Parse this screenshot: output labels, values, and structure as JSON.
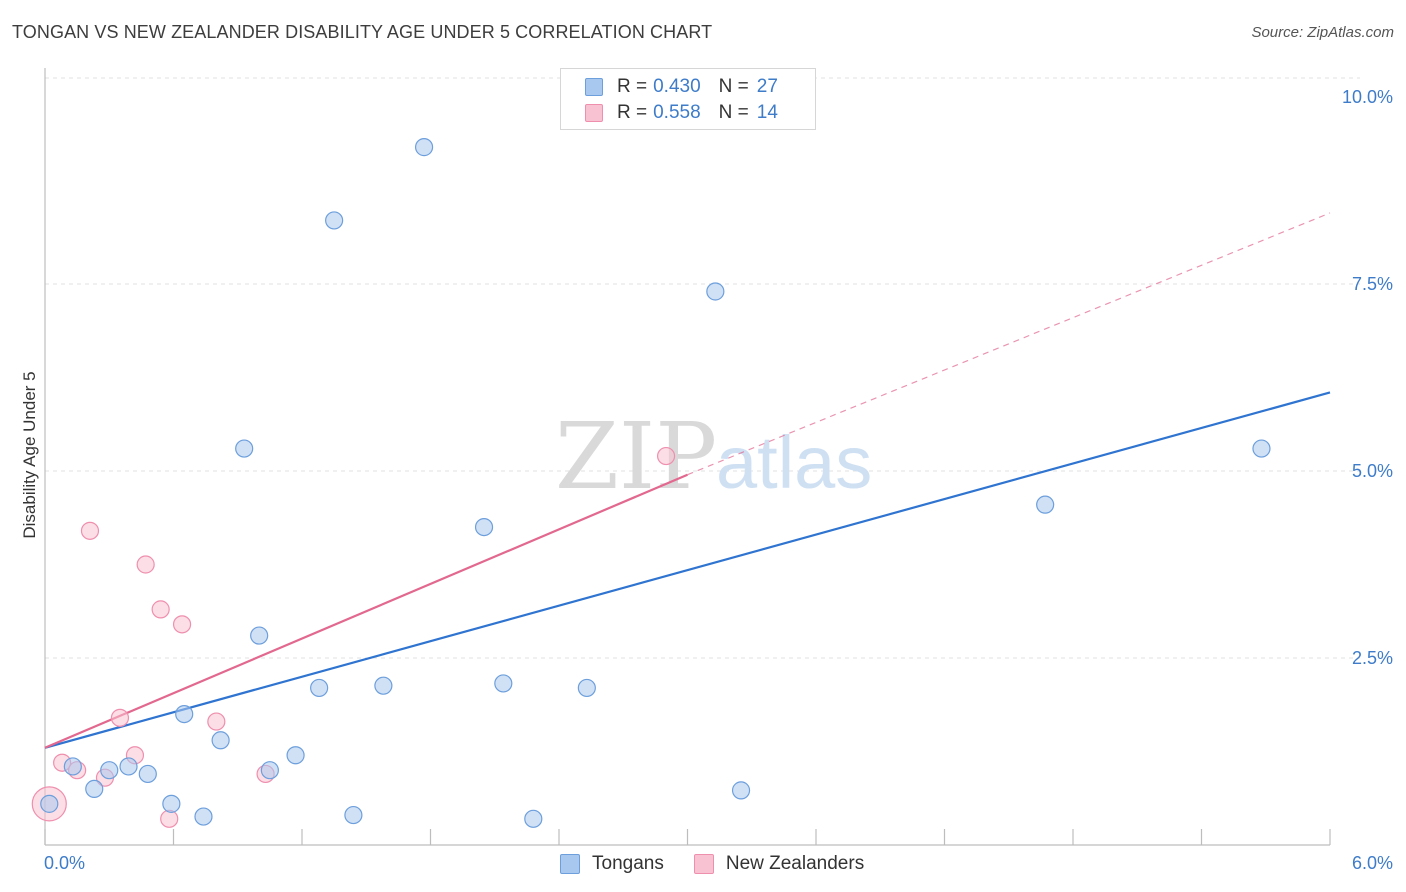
{
  "title": "TONGAN VS NEW ZEALANDER DISABILITY AGE UNDER 5 CORRELATION CHART",
  "source": "Source: ZipAtlas.com",
  "watermark": {
    "zip": "ZIP",
    "atlas": "atlas"
  },
  "legend": {
    "items": [
      {
        "r_label": "R =",
        "r_value": "0.430",
        "n_label": "N =",
        "n_value": "27",
        "color": "#a9c8ef",
        "border": "#6d9fdc"
      },
      {
        "r_label": "R =",
        "r_value": "0.558",
        "n_label": "N =",
        "n_value": "14",
        "color": "#f9c2d2",
        "border": "#ef8fae"
      }
    ]
  },
  "bottom_legend": [
    {
      "label": "Tongans",
      "color": "#a9c8ef",
      "border": "#6d9fdc"
    },
    {
      "label": "New Zealanders",
      "color": "#f9c2d2",
      "border": "#ef8fae"
    }
  ],
  "chart_data": {
    "type": "scatter",
    "title": "TONGAN VS NEW ZEALANDER DISABILITY AGE UNDER 5 CORRELATION CHART",
    "xlabel": "",
    "ylabel": "Disability Age Under 5",
    "xlim": [
      0,
      6.0
    ],
    "ylim": [
      0,
      10.0
    ],
    "x_tick_labels": [
      "0.0%",
      "6.0%"
    ],
    "y_ticks": [
      2.5,
      5.0,
      7.5,
      10.0
    ],
    "y_tick_labels": [
      "2.5%",
      "5.0%",
      "7.5%",
      "10.0%"
    ],
    "grid": true,
    "series": [
      {
        "name": "Tongans",
        "color": "#a9c8ef",
        "stroke": "#6d9fdc",
        "line_color": "#2f74d0",
        "trend": {
          "x": [
            0.0,
            6.0
          ],
          "y": [
            1.3,
            6.05
          ]
        },
        "points": [
          {
            "x": 0.02,
            "y": 0.55
          },
          {
            "x": 0.13,
            "y": 1.05
          },
          {
            "x": 0.23,
            "y": 0.75
          },
          {
            "x": 0.3,
            "y": 1.0
          },
          {
            "x": 0.39,
            "y": 1.05
          },
          {
            "x": 0.48,
            "y": 0.95
          },
          {
            "x": 0.59,
            "y": 0.55
          },
          {
            "x": 0.65,
            "y": 1.75
          },
          {
            "x": 0.74,
            "y": 0.38
          },
          {
            "x": 0.82,
            "y": 1.4
          },
          {
            "x": 0.93,
            "y": 5.3
          },
          {
            "x": 1.0,
            "y": 2.8
          },
          {
            "x": 1.05,
            "y": 1.0
          },
          {
            "x": 1.17,
            "y": 1.2
          },
          {
            "x": 1.28,
            "y": 2.1
          },
          {
            "x": 1.35,
            "y": 8.35
          },
          {
            "x": 1.44,
            "y": 0.4
          },
          {
            "x": 1.58,
            "y": 2.13
          },
          {
            "x": 1.77,
            "y": 9.33
          },
          {
            "x": 2.05,
            "y": 4.25
          },
          {
            "x": 2.14,
            "y": 2.16
          },
          {
            "x": 2.28,
            "y": 0.35
          },
          {
            "x": 2.53,
            "y": 2.1
          },
          {
            "x": 3.13,
            "y": 7.4
          },
          {
            "x": 3.25,
            "y": 0.73
          },
          {
            "x": 4.67,
            "y": 4.55
          },
          {
            "x": 5.68,
            "y": 5.3
          }
        ]
      },
      {
        "name": "New Zealanders",
        "color": "#f9c2d2",
        "stroke": "#ef8fae",
        "line_color": "#e2688f",
        "trend": {
          "x": [
            0.0,
            3.0
          ],
          "y": [
            1.3,
            4.95
          ]
        },
        "trend_extension": {
          "x": [
            3.0,
            6.0
          ],
          "y": [
            4.95,
            8.45
          ]
        },
        "points": [
          {
            "x": 0.02,
            "y": 0.55,
            "large": true
          },
          {
            "x": 0.08,
            "y": 1.1
          },
          {
            "x": 0.15,
            "y": 1.0
          },
          {
            "x": 0.21,
            "y": 4.2
          },
          {
            "x": 0.28,
            "y": 0.9
          },
          {
            "x": 0.35,
            "y": 1.7
          },
          {
            "x": 0.42,
            "y": 1.2
          },
          {
            "x": 0.47,
            "y": 3.75
          },
          {
            "x": 0.54,
            "y": 3.15
          },
          {
            "x": 0.58,
            "y": 0.35
          },
          {
            "x": 0.64,
            "y": 2.95
          },
          {
            "x": 0.8,
            "y": 1.65
          },
          {
            "x": 1.03,
            "y": 0.95
          },
          {
            "x": 2.9,
            "y": 5.2
          }
        ]
      }
    ]
  }
}
